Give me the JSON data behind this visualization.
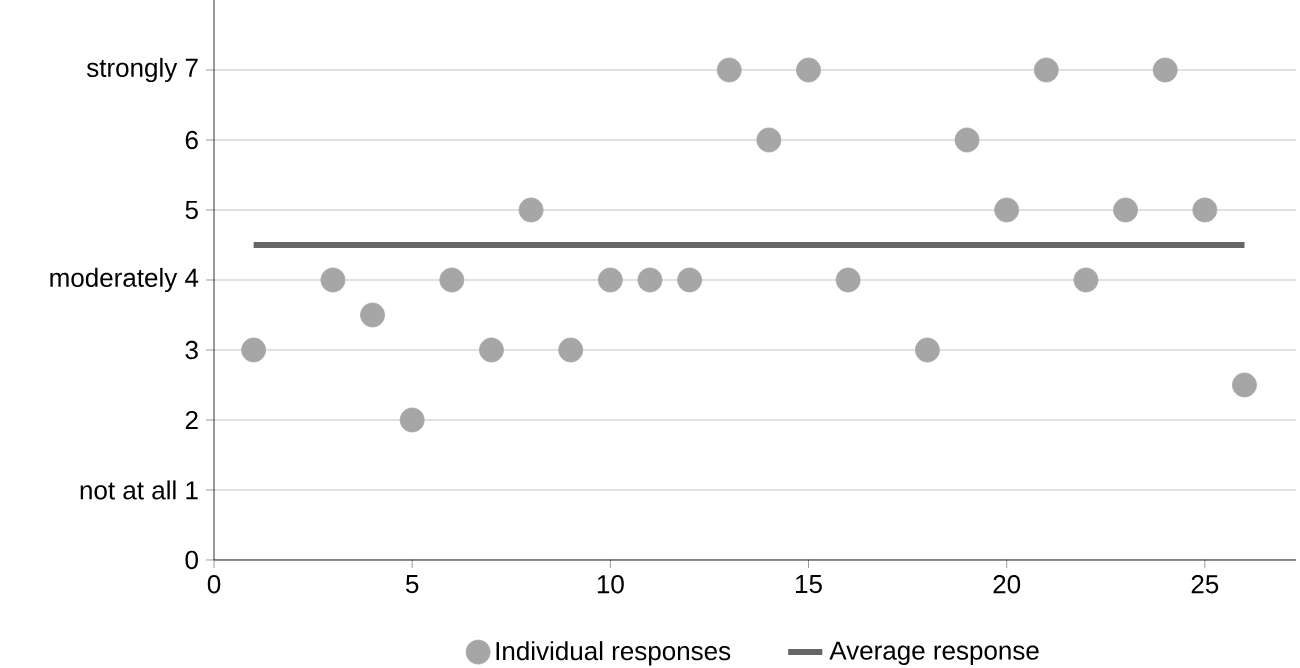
{
  "chart_data": {
    "type": "line",
    "xlim": [
      0,
      27.3
    ],
    "ylim": [
      0,
      8
    ],
    "xticks": [
      0,
      5,
      10,
      15,
      20,
      25
    ],
    "yticks": [
      0,
      {
        "value": 1,
        "label": "not at all 1"
      },
      2,
      3,
      {
        "value": 4,
        "label": "moderately 4"
      },
      5,
      6,
      {
        "value": 7,
        "label": "strongly 7"
      }
    ],
    "grid": "y",
    "legend": "bottom",
    "series": [
      {
        "name": "Individual responses",
        "type": "scatter",
        "marker": "circle",
        "color": "#a6a6a6",
        "x": [
          1,
          3,
          4,
          5,
          6,
          7,
          8,
          9,
          10,
          11,
          12,
          13,
          14,
          15,
          16,
          18,
          19,
          20,
          21,
          22,
          23,
          24,
          25,
          26
        ],
        "values": [
          3,
          4,
          3.5,
          2,
          4,
          3,
          5,
          3,
          4,
          4,
          4,
          7,
          6,
          7,
          4,
          3,
          6,
          5,
          7,
          4,
          5,
          7,
          5,
          2.5
        ]
      },
      {
        "name": "Average response",
        "marker": "none",
        "line_style": "solid",
        "color": "#666666",
        "x": [
          1,
          26
        ],
        "values": [
          4.5,
          4.5
        ]
      }
    ]
  }
}
